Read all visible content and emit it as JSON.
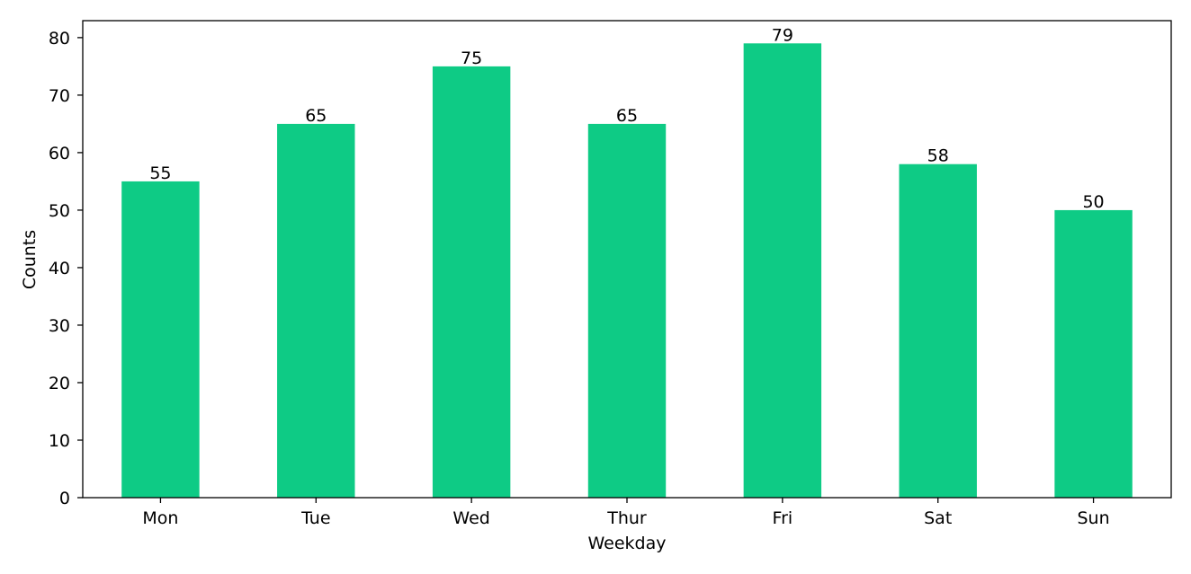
{
  "chart_data": {
    "type": "bar",
    "categories": [
      "Mon",
      "Tue",
      "Wed",
      "Thur",
      "Fri",
      "Sat",
      "Sun"
    ],
    "values": [
      55,
      65,
      75,
      65,
      79,
      58,
      50
    ],
    "xlabel": "Weekday",
    "ylabel": "Counts",
    "ylim": [
      0,
      82.95
    ],
    "yticks": [
      0,
      10,
      20,
      30,
      40,
      50,
      60,
      70,
      80
    ],
    "bar_color": "#0ecb85",
    "grid": false,
    "data_labels": true
  }
}
